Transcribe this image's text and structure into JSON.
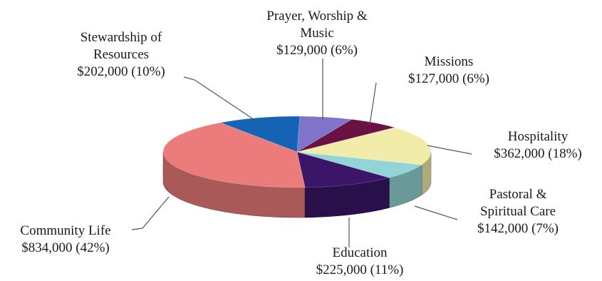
{
  "chart_data": {
    "type": "pie",
    "title": "",
    "slices": [
      {
        "name": "Prayer, Worship & Music",
        "value": 129000,
        "percent": 6,
        "display_value": "$129,000 (6%)",
        "color": "#7f74c9",
        "label_lines": [
          "Prayer, Worship &",
          "Music",
          "$129,000 (6%)"
        ]
      },
      {
        "name": "Missions",
        "value": 127000,
        "percent": 6,
        "display_value": "$127,000 (6%)",
        "color": "#6a1244",
        "label_lines": [
          "Missions",
          "$127,000 (6%)"
        ]
      },
      {
        "name": "Hospitality",
        "value": 362000,
        "percent": 18,
        "display_value": "$362,000 (18%)",
        "color": "#f1ecaa",
        "label_lines": [
          "Hospitality",
          "$362,000 (18%)"
        ]
      },
      {
        "name": "Pastoral & Spiritual Care",
        "value": 142000,
        "percent": 7,
        "display_value": "$142,000 (7%)",
        "color": "#93d5d6",
        "label_lines": [
          "Pastoral &",
          "Spiritual Care",
          "$142,000 (7%)"
        ]
      },
      {
        "name": "Education",
        "value": 225000,
        "percent": 11,
        "display_value": "$225,000 (11%)",
        "color": "#3b1668",
        "label_lines": [
          "Education",
          "$225,000 (11%)"
        ]
      },
      {
        "name": "Community Life",
        "value": 834000,
        "percent": 42,
        "display_value": "$834,000 (42%)",
        "color": "#ec7b7b",
        "label_lines": [
          "Community Life",
          "$834,000 (42%)"
        ]
      },
      {
        "name": "Stewardship of Resources",
        "value": 202000,
        "percent": 10,
        "display_value": "$202,000 (10%)",
        "color": "#1463b4",
        "label_lines": [
          "Stewardship of",
          "Resources",
          "$202,000 (10%)"
        ]
      }
    ]
  }
}
